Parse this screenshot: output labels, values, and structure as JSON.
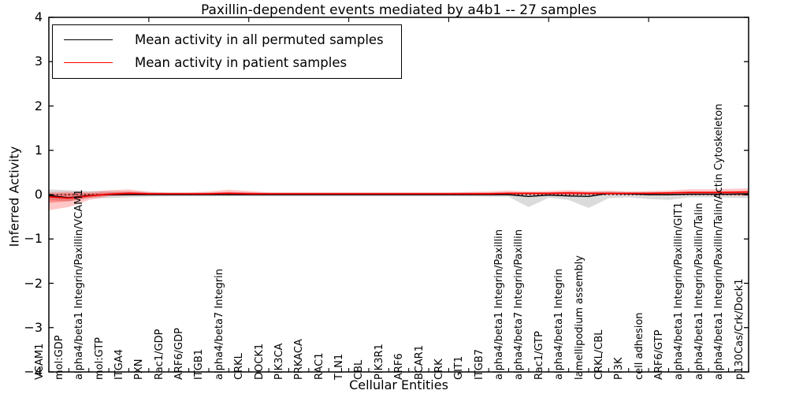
{
  "window": {
    "title": "Paxillin-dependent events mediated by a4b1 -- 27 samples"
  },
  "chart_data": {
    "type": "line",
    "title": "Paxillin-dependent events mediated by a4b1 -- 27 samples",
    "xlabel": "Cellular Entities",
    "ylabel": "Inferred Activity",
    "ylim": [
      -4,
      4
    ],
    "yticks": [
      4,
      3,
      2,
      1,
      0,
      -1,
      -2,
      -3,
      -4
    ],
    "ytick_labels": [
      "4",
      "3",
      "2",
      "1",
      "0",
      "−1",
      "−2",
      "−3",
      "−4"
    ],
    "grid": false,
    "zero_reference_line": {
      "y": 0,
      "style": "dotted",
      "color": "#000000"
    },
    "legend": {
      "position": "upper left",
      "entries": [
        {
          "label": "Mean activity in all permuted samples",
          "color": "#000000"
        },
        {
          "label": "Mean activity in patient samples",
          "color": "#ff0000"
        }
      ]
    },
    "categories": [
      "VCAM1",
      "mol:GDP",
      "alpha4/beta1 Integrin/Paxillin/VCAM1",
      "mol:GTP",
      "ITGA4",
      "PXN",
      "Rac1/GDP",
      "ARF6/GDP",
      "ITGB1",
      "alpha4/beta7 Integrin",
      "CRKL",
      "DOCK1",
      "PIK3CA",
      "PRKACA",
      "RAC1",
      "TLN1",
      "CBL",
      "PIK3R1",
      "ARF6",
      "BCAR1",
      "CRK",
      "GIT1",
      "ITGB7",
      "alpha4/beta1 Integrin/Paxillin",
      "alpha4/beta7 Integrin/Paxillin",
      "Rac1/GTP",
      "alpha4/beta1 Integrin",
      "lamellipodium assembly",
      "CRKL/CBL",
      "PI3K",
      "cell adhesion",
      "ARF6/GTP",
      "alpha4/beta1 Integrin/Paxillin/GIT1",
      "alpha4/beta1 Integrin/Paxillin/Talin",
      "alpha4/beta1 Integrin/Paxillin/Talin/Actin Cytoskeleton",
      "p130Cas/Crk/Dock1"
    ],
    "series": [
      {
        "name": "Mean activity in all permuted samples",
        "color": "#000000",
        "values": [
          -0.02,
          -0.07,
          -0.02,
          0,
          0,
          0,
          0,
          0,
          0,
          0,
          0,
          0,
          0,
          0,
          0,
          0,
          0,
          0,
          0,
          0,
          0,
          0,
          0,
          0,
          -0.04,
          -0.01,
          -0.03,
          -0.04,
          0.03,
          0.02,
          0,
          0,
          0.01,
          0.01,
          0.01,
          0.02
        ],
        "band": {
          "color": "#999999",
          "opacity": 0.35,
          "low": [
            -0.12,
            -0.15,
            -0.08,
            -0.08,
            -0.06,
            -0.05,
            -0.04,
            -0.04,
            -0.04,
            -0.04,
            -0.04,
            -0.04,
            -0.04,
            -0.04,
            -0.04,
            -0.04,
            -0.04,
            -0.04,
            -0.04,
            -0.04,
            -0.04,
            -0.04,
            -0.05,
            -0.05,
            -0.28,
            -0.07,
            -0.12,
            -0.3,
            -0.08,
            -0.06,
            -0.1,
            -0.12,
            -0.06,
            -0.06,
            -0.07,
            -0.08
          ],
          "high": [
            0.12,
            0.1,
            0.08,
            0.08,
            0.07,
            0.06,
            0.05,
            0.05,
            0.05,
            0.05,
            0.05,
            0.05,
            0.05,
            0.05,
            0.05,
            0.05,
            0.05,
            0.05,
            0.05,
            0.05,
            0.05,
            0.05,
            0.05,
            0.05,
            0.06,
            0.05,
            0.06,
            0.06,
            0.07,
            0.06,
            0.06,
            0.06,
            0.06,
            0.06,
            0.07,
            0.08
          ]
        }
      },
      {
        "name": "Mean activity in patient samples",
        "color": "#ff0000",
        "values": [
          -0.05,
          -0.08,
          -0.03,
          0.01,
          0.03,
          0.02,
          0.02,
          0.02,
          0.02,
          0.03,
          0.02,
          0.02,
          0.02,
          0.02,
          0.02,
          0.02,
          0.02,
          0.02,
          0.02,
          0.02,
          0.02,
          0.02,
          0.02,
          0.03,
          0.03,
          0.03,
          0.04,
          0.03,
          0.03,
          0.03,
          0.03,
          0.04,
          0.05,
          0.05,
          0.05,
          0.06
        ],
        "band": {
          "color": "#ff0000",
          "opacity": 0.22,
          "low": [
            -0.35,
            -0.28,
            -0.12,
            -0.04,
            -0.02,
            -0.01,
            -0.01,
            -0.01,
            -0.01,
            -0.01,
            -0.01,
            -0.01,
            -0.01,
            -0.01,
            -0.01,
            -0.01,
            -0.01,
            -0.01,
            -0.01,
            -0.01,
            -0.01,
            -0.01,
            -0.01,
            -0.01,
            -0.01,
            -0.01,
            -0.02,
            -0.01,
            -0.01,
            -0.01,
            -0.01,
            -0.01,
            -0.01,
            -0.01,
            -0.02,
            -0.03
          ],
          "high": [
            0.06,
            0.07,
            0.06,
            0.1,
            0.12,
            0.06,
            0.05,
            0.05,
            0.07,
            0.11,
            0.08,
            0.05,
            0.05,
            0.05,
            0.05,
            0.05,
            0.05,
            0.05,
            0.05,
            0.05,
            0.05,
            0.06,
            0.07,
            0.09,
            0.07,
            0.08,
            0.1,
            0.08,
            0.09,
            0.07,
            0.08,
            0.09,
            0.12,
            0.12,
            0.13,
            0.14
          ]
        },
        "band_inner": {
          "color": "#ff0000",
          "opacity": 0.3,
          "low": [
            -0.18,
            -0.15,
            -0.07,
            -0.02,
            -0.01,
            0,
            0,
            0,
            0,
            0,
            0,
            0,
            0,
            0,
            0,
            0,
            0,
            0,
            0,
            0,
            0,
            0,
            0,
            0,
            0,
            0,
            0,
            0,
            0,
            0,
            0,
            0,
            0,
            0,
            0,
            -0.01
          ],
          "high": [
            0.02,
            0.03,
            0.03,
            0.05,
            0.07,
            0.04,
            0.03,
            0.03,
            0.04,
            0.06,
            0.05,
            0.03,
            0.03,
            0.03,
            0.03,
            0.03,
            0.03,
            0.03,
            0.03,
            0.03,
            0.03,
            0.04,
            0.04,
            0.05,
            0.04,
            0.05,
            0.06,
            0.05,
            0.05,
            0.04,
            0.05,
            0.05,
            0.07,
            0.07,
            0.08,
            0.08
          ]
        }
      }
    ]
  }
}
